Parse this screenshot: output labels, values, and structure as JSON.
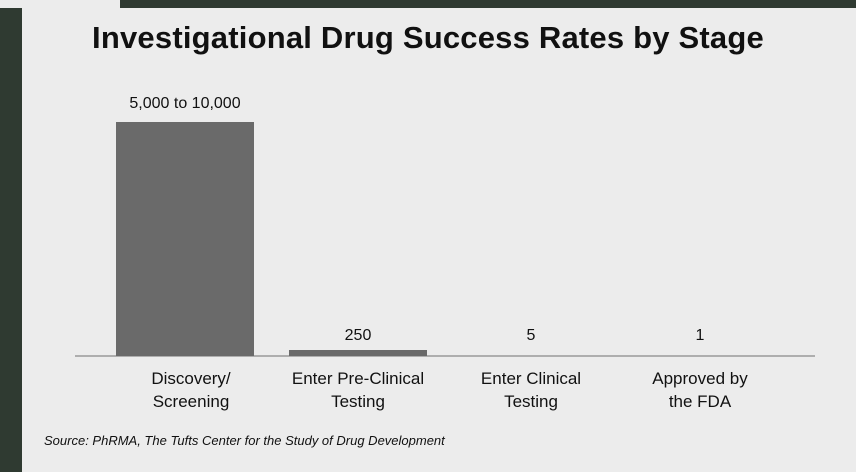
{
  "chart_data": {
    "type": "bar",
    "title": "Investigational Drug Success Rates by Stage",
    "categories": [
      [
        "Discovery/",
        "Screening"
      ],
      [
        "Enter Pre-Clinical",
        "Testing"
      ],
      [
        "Enter Clinical",
        "Testing"
      ],
      [
        "Approved by",
        "the FDA"
      ]
    ],
    "values": [
      10000,
      250,
      5,
      1
    ],
    "value_labels": [
      "5,000 to 10,000",
      "250",
      "5",
      "1"
    ],
    "xlabel": "",
    "ylabel": "",
    "ylim": [
      0,
      10000
    ],
    "grid": false,
    "legend": "none",
    "bar_color": "#6a6a6a",
    "source": "Source: PhRMA, The Tufts Center for the Study of Drug Development"
  }
}
